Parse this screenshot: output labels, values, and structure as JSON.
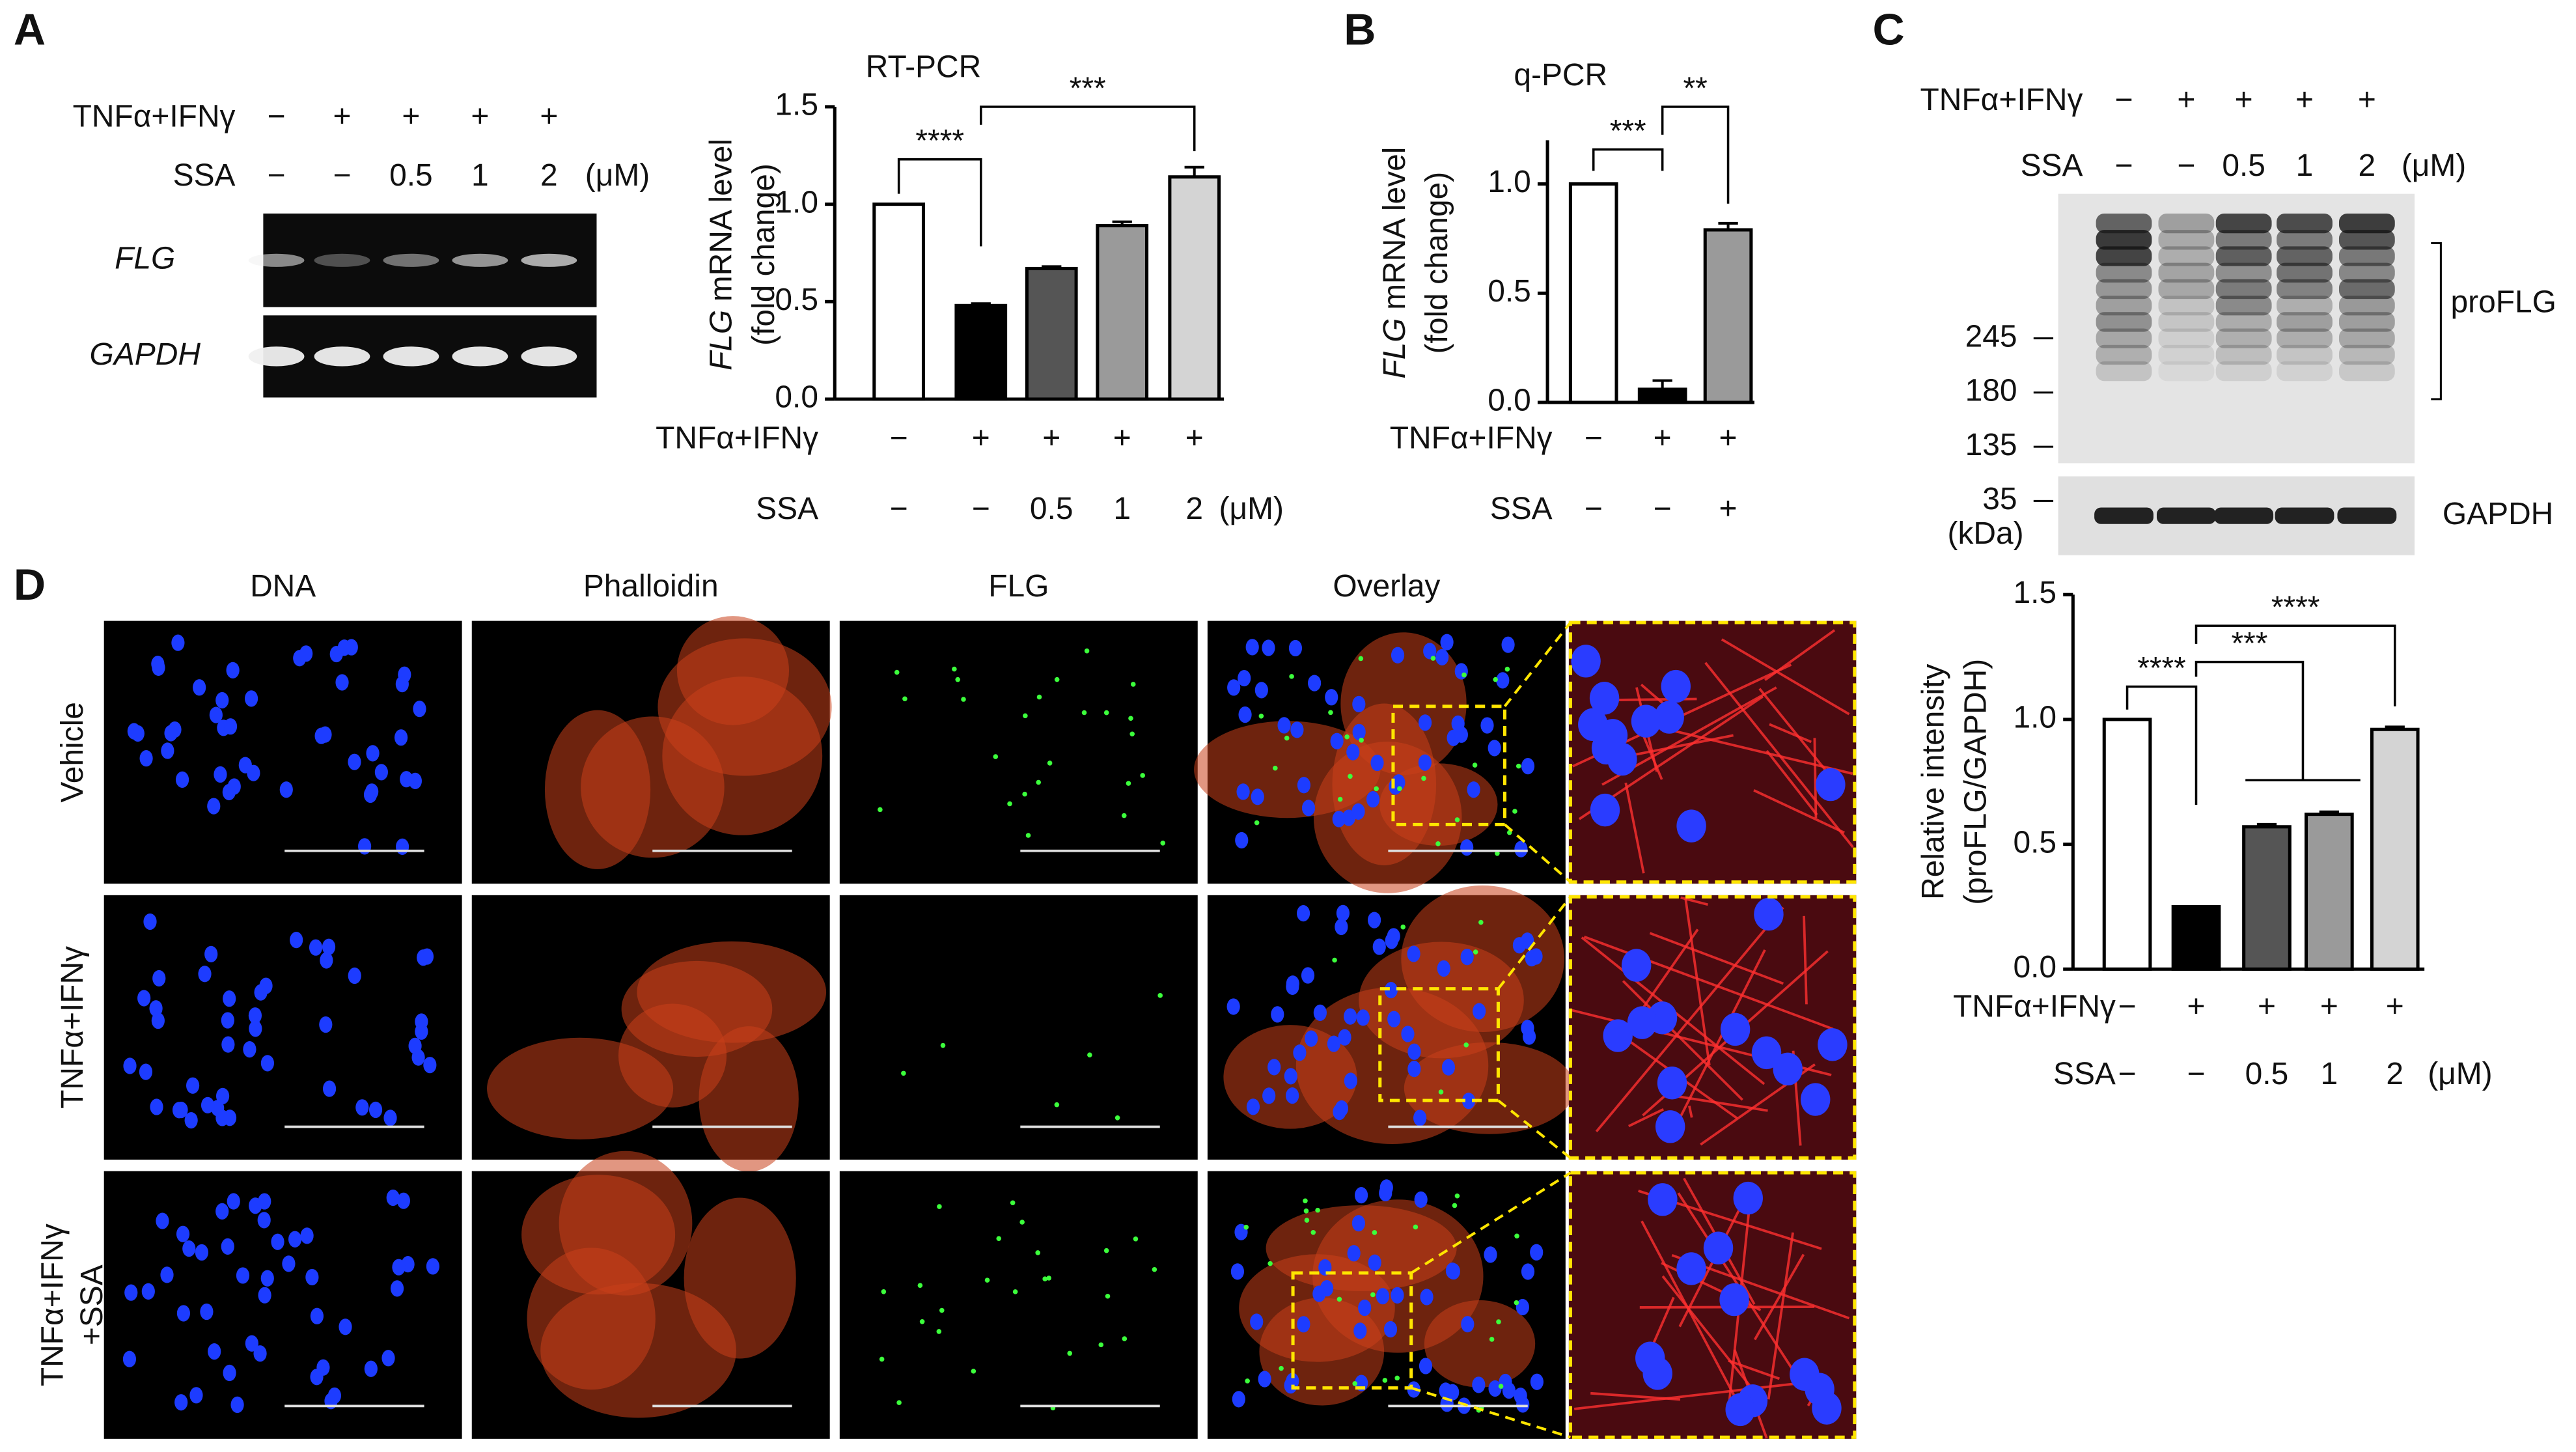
{
  "panel_letters": [
    "A",
    "B",
    "C",
    "D"
  ],
  "gel_A": {
    "rows": [
      {
        "label": "TNFα+IFNγ",
        "lanes": [
          "−",
          "+",
          "+",
          "+",
          "+"
        ]
      },
      {
        "label": "SSA",
        "lanes": [
          "−",
          "−",
          "0.5",
          "1",
          "2"
        ],
        "unit": "(μM)"
      }
    ],
    "bands": [
      "FLG",
      "GAPDH"
    ]
  },
  "chart_data": [
    {
      "type": "bar",
      "title": "RT-PCR",
      "y_label_gene": "FLG",
      "y_label": "mRNA level",
      "y_label_2": "(fold change)",
      "categories": [
        null,
        null,
        null,
        null,
        null
      ],
      "values": [
        1.0,
        0.48,
        0.67,
        0.89,
        1.14
      ],
      "errors": [
        0,
        0.01,
        0.01,
        0.02,
        0.05
      ],
      "colors": [
        "#ffffff",
        "#000000",
        "#555555",
        "#9a9a9a",
        "#d4d4d4"
      ],
      "ylim": [
        0,
        1.5
      ],
      "yticks": [
        {
          "value": 0,
          "label": "0.0"
        },
        {
          "value": 0.5,
          "label": "0.5"
        },
        {
          "value": 1,
          "label": "1.0"
        },
        {
          "value": 1.5,
          "label": "1.5"
        }
      ],
      "x_rows": [
        {
          "label": "TNFα+IFNγ",
          "values": [
            "−",
            "+",
            "+",
            "+",
            "+"
          ]
        },
        {
          "label": "SSA",
          "values": [
            "−",
            "−",
            "0.5",
            "1",
            "2"
          ],
          "unit": "(μM)"
        }
      ],
      "annotations": [
        "****",
        "***"
      ]
    },
    {
      "type": "bar",
      "title": "q-PCR",
      "y_label_gene": "FLG",
      "y_label": "mRNA level",
      "y_label_2": "(fold change)",
      "categories": [
        null,
        null,
        null
      ],
      "values": [
        1.0,
        0.06,
        0.79
      ],
      "errors": [
        0,
        0.04,
        0.03
      ],
      "colors": [
        "#ffffff",
        "#000000",
        "#9a9a9a"
      ],
      "ylim": [
        0,
        1.2
      ],
      "yticks": [
        {
          "value": 0,
          "label": "0.0"
        },
        {
          "value": 0.5,
          "label": "0.5"
        },
        {
          "value": 1,
          "label": "1.0"
        }
      ],
      "x_rows": [
        {
          "label": "TNFα+IFNγ",
          "values": [
            "−",
            "+",
            "+"
          ]
        },
        {
          "label": "SSA",
          "values": [
            "−",
            "−",
            "+"
          ]
        }
      ],
      "annotations": [
        "***",
        "**"
      ]
    },
    {
      "type": "bar",
      "y_label": "Relative intensity",
      "y_label_2": "(proFLG/GAPDH)",
      "categories": [
        null,
        null,
        null,
        null,
        null
      ],
      "values": [
        1.0,
        0.25,
        0.57,
        0.62,
        0.96
      ],
      "errors": [
        0,
        0,
        0.01,
        0.01,
        0.01
      ],
      "colors": [
        "#ffffff",
        "#000000",
        "#555555",
        "#9a9a9a",
        "#d4d4d4"
      ],
      "ylim": [
        0,
        1.5
      ],
      "yticks": [
        {
          "value": 0,
          "label": "0.0"
        },
        {
          "value": 0.5,
          "label": "0.5"
        },
        {
          "value": 1,
          "label": "1.0"
        },
        {
          "value": 1.5,
          "label": "1.5"
        }
      ],
      "x_rows": [
        {
          "label": "TNFα+IFNγ",
          "values": [
            "−",
            "+",
            "+",
            "+",
            "+"
          ]
        },
        {
          "label": "SSA",
          "values": [
            "−",
            "−",
            "0.5",
            "1",
            "2"
          ],
          "unit": "(μM)"
        }
      ],
      "annotations": [
        "****",
        "***",
        "****"
      ]
    }
  ],
  "blot_C": {
    "rows": [
      {
        "label": "TNFα+IFNγ",
        "lanes": [
          "−",
          "+",
          "+",
          "+",
          "+"
        ]
      },
      {
        "label": "SSA",
        "lanes": [
          "−",
          "−",
          "0.5",
          "1",
          "2"
        ],
        "unit": "(μM)"
      }
    ],
    "markers": [
      "245",
      "180",
      "135",
      "35"
    ],
    "marker_unit": "(kDa)",
    "bands": [
      "proFLG",
      "GAPDH"
    ]
  },
  "microscopy_D": {
    "columns": [
      {
        "label": "DNA",
        "color": "#1a1aff"
      },
      {
        "label": "Phalloidin",
        "color": "#ff2020"
      },
      {
        "label": "FLG",
        "color": "#1fbf1f"
      },
      {
        "label": "Overlay",
        "color": "#111111"
      }
    ],
    "rows": [
      [
        "Vehicle"
      ],
      [
        "TNFα+IFNγ"
      ],
      [
        "TNFα+IFNγ",
        "+SSA"
      ]
    ]
  }
}
